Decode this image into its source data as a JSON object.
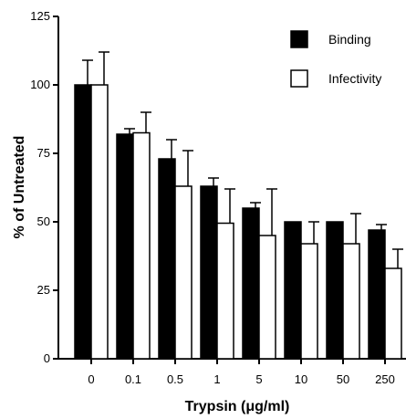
{
  "chart_data": {
    "type": "bar",
    "xlabel": "Trypsin (μg/ml)",
    "ylabel": "% of Untreated",
    "categories": [
      "0",
      "0.1",
      "0.5",
      "1",
      "5",
      "10",
      "50",
      "250"
    ],
    "ylim": [
      0,
      125
    ],
    "yticks": [
      "0",
      "25",
      "50",
      "75",
      "100",
      "125"
    ],
    "grid": false,
    "legend_position": "top-right",
    "series": [
      {
        "name": "Binding",
        "color": "#000000",
        "fill": "solid",
        "values": [
          100,
          82,
          73,
          63,
          55,
          50,
          50,
          47
        ],
        "errors": [
          9,
          2,
          7,
          3,
          2,
          0,
          0,
          2
        ]
      },
      {
        "name": "Infectivity",
        "color": "#ffffff",
        "fill": "hollow",
        "values": [
          100,
          82.5,
          63,
          49.5,
          45,
          42,
          42,
          33
        ],
        "errors": [
          12,
          7.5,
          13,
          12.5,
          17,
          8,
          11,
          7
        ]
      }
    ]
  }
}
